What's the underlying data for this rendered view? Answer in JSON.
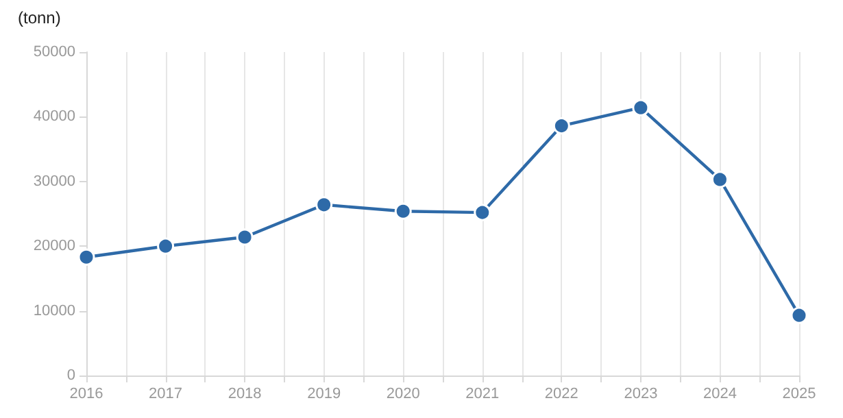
{
  "chart_data": {
    "type": "line",
    "ylabel": "(tonn)",
    "x": [
      2016,
      2017,
      2018,
      2019,
      2020,
      2021,
      2022,
      2023,
      2024,
      2025
    ],
    "series": [
      {
        "color": "#2e6aa8",
        "values": [
          18300,
          20000,
          21400,
          26400,
          25400,
          25200,
          38600,
          41400,
          30300,
          9300
        ]
      }
    ],
    "xlim": [
      2016,
      2025
    ],
    "xticks": [
      2016,
      {
        "value": 2016.5,
        "label": null
      },
      2017,
      {
        "value": 2017.5,
        "label": null
      },
      2018,
      {
        "value": 2018.5,
        "label": null
      },
      2019,
      {
        "value": 2019.5,
        "label": null
      },
      2020,
      {
        "value": 2020.5,
        "label": null
      },
      2021,
      {
        "value": 2021.5,
        "label": null
      },
      2022,
      {
        "value": 2022.5,
        "label": null
      },
      2023,
      {
        "value": 2023.5,
        "label": null
      },
      2024,
      {
        "value": 2024.5,
        "label": null
      },
      2025
    ],
    "ylim": [
      0,
      50000
    ],
    "yticks": [
      0,
      10000,
      20000,
      30000,
      40000,
      50000
    ],
    "grid": "x",
    "marker": "circle",
    "line_style": "solid"
  }
}
